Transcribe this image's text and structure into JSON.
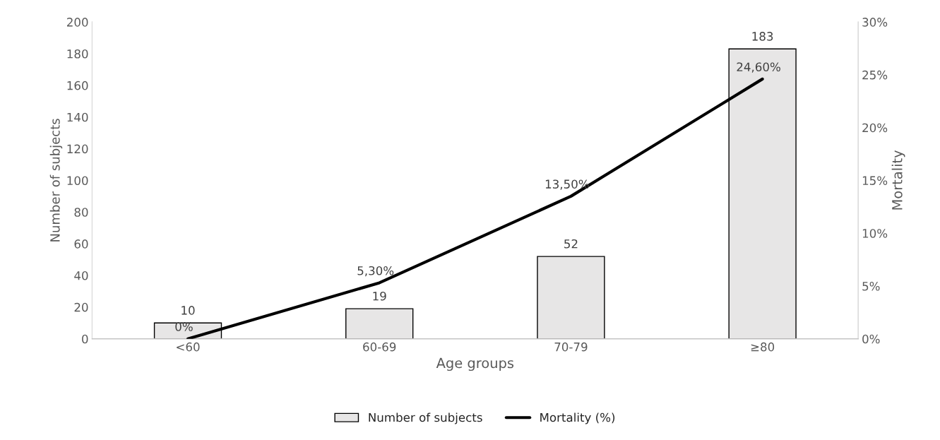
{
  "chart_data": {
    "type": "bar",
    "xlabel": "Age groups",
    "ylabel": "Number of subjects",
    "y2label": "Mortality",
    "categories": [
      "<60",
      "60-69",
      "70-79",
      "≥80"
    ],
    "series": [
      {
        "name": "Number of subjects",
        "color": "#e7e6e6",
        "values": [
          10,
          19,
          52,
          183
        ],
        "value_labels": [
          "10",
          "19",
          "52",
          "183"
        ]
      },
      {
        "name": "Mortality (%)",
        "type": "line",
        "axis": "y2",
        "color": "#000000",
        "values": [
          0,
          5.3,
          13.5,
          24.6
        ],
        "value_labels": [
          "0%",
          "5,30%",
          "13,50%",
          "24,60%"
        ]
      }
    ],
    "ylim": [
      0,
      200
    ],
    "yticks": [
      0,
      20,
      40,
      60,
      80,
      100,
      120,
      140,
      160,
      180,
      200
    ],
    "y2lim": [
      0,
      30
    ],
    "y2ticks": [
      {
        "value": 0,
        "label": "0%"
      },
      {
        "value": 5,
        "label": "5%"
      },
      {
        "value": 10,
        "label": "10%"
      },
      {
        "value": 15,
        "label": "15%"
      },
      {
        "value": 20,
        "label": "20%"
      },
      {
        "value": 25,
        "label": "25%"
      },
      {
        "value": 30,
        "label": "30%"
      }
    ],
    "grid": false,
    "legend": "bottom",
    "marker": "none",
    "line_style": "solid"
  }
}
